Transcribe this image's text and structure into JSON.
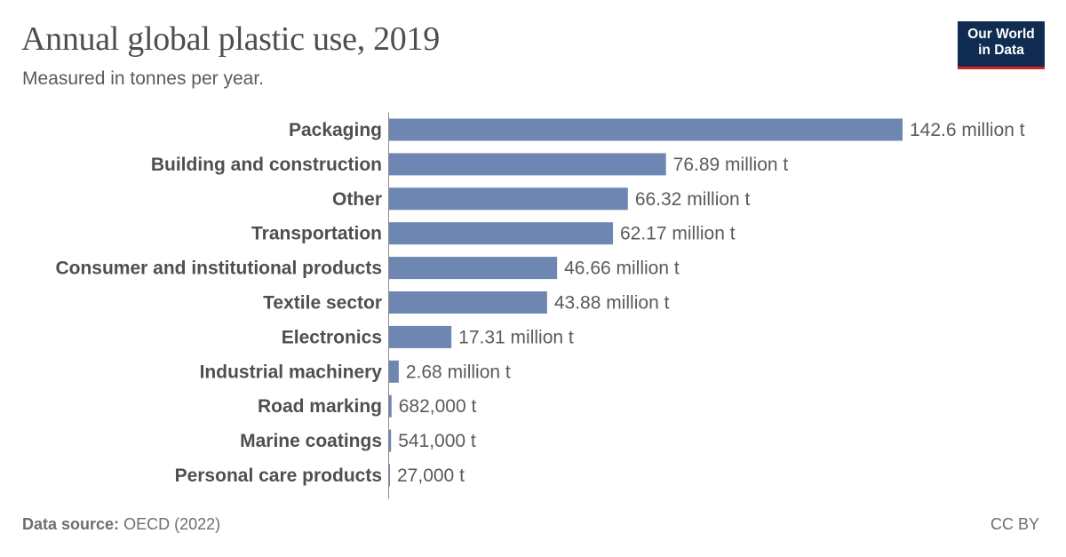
{
  "header": {
    "title": "Annual global plastic use, 2019",
    "subtitle": "Measured in tonnes per year."
  },
  "logo": {
    "line1": "Our World",
    "line2": "in Data"
  },
  "footer": {
    "source_label": "Data source:",
    "source_value": "OECD (2022)",
    "license": "CC BY"
  },
  "colors": {
    "bar": "#6d86b2",
    "label": "#4f4f4f",
    "value": "#5b5b5b",
    "axis": "#8c8c8c"
  },
  "chart_data": {
    "type": "bar",
    "orientation": "horizontal",
    "title": "Annual global plastic use, 2019",
    "subtitle": "Measured in tonnes per year.",
    "unit": "t",
    "xlim": [
      0,
      142600000
    ],
    "categories": [
      "Packaging",
      "Building and construction",
      "Other",
      "Transportation",
      "Consumer and institutional products",
      "Textile sector",
      "Electronics",
      "Industrial machinery",
      "Road marking",
      "Marine coatings",
      "Personal care products"
    ],
    "values": [
      142600000,
      76890000,
      66320000,
      62170000,
      46660000,
      43880000,
      17310000,
      2680000,
      682000,
      541000,
      27000
    ],
    "value_labels": [
      "142.6 million t",
      "76.89 million t",
      "66.32 million t",
      "62.17 million t",
      "46.66 million t",
      "43.88 million t",
      "17.31 million t",
      "2.68 million t",
      "682,000 t",
      "541,000 t",
      "27,000 t"
    ]
  }
}
